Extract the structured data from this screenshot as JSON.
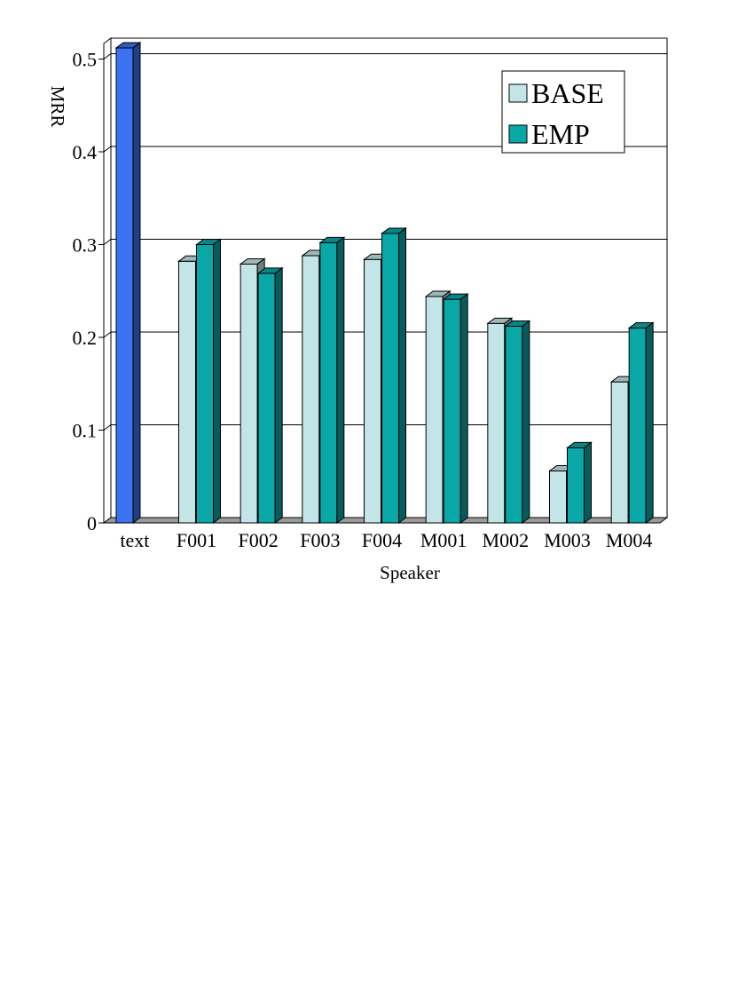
{
  "chart_data": {
    "type": "bar",
    "title": "",
    "xlabel": "Speaker",
    "ylabel": "MRR",
    "ylim": [
      0,
      0.5
    ],
    "yticks": [
      "0",
      "0.1",
      "0.2",
      "0.3",
      "0.4",
      "0.5"
    ],
    "categories": [
      "text",
      "F001",
      "F002",
      "F003",
      "F004",
      "M001",
      "M002",
      "M003",
      "M004"
    ],
    "series": [
      {
        "name": "",
        "values": [
          0.512,
          null,
          null,
          null,
          null,
          null,
          null,
          null,
          null
        ]
      },
      {
        "name": "BASE",
        "values": [
          null,
          0.282,
          0.279,
          0.288,
          0.284,
          0.244,
          0.215,
          0.056,
          0.152
        ]
      },
      {
        "name": "EMP",
        "values": [
          null,
          0.3,
          0.269,
          0.302,
          0.312,
          0.241,
          0.212,
          0.081,
          0.21
        ]
      }
    ],
    "colors": {
      "text": "#3b72f0",
      "BASE": "#c4e5e7",
      "EMP": "#0aa7a7"
    },
    "grid": true,
    "legend_position": "top-right"
  }
}
